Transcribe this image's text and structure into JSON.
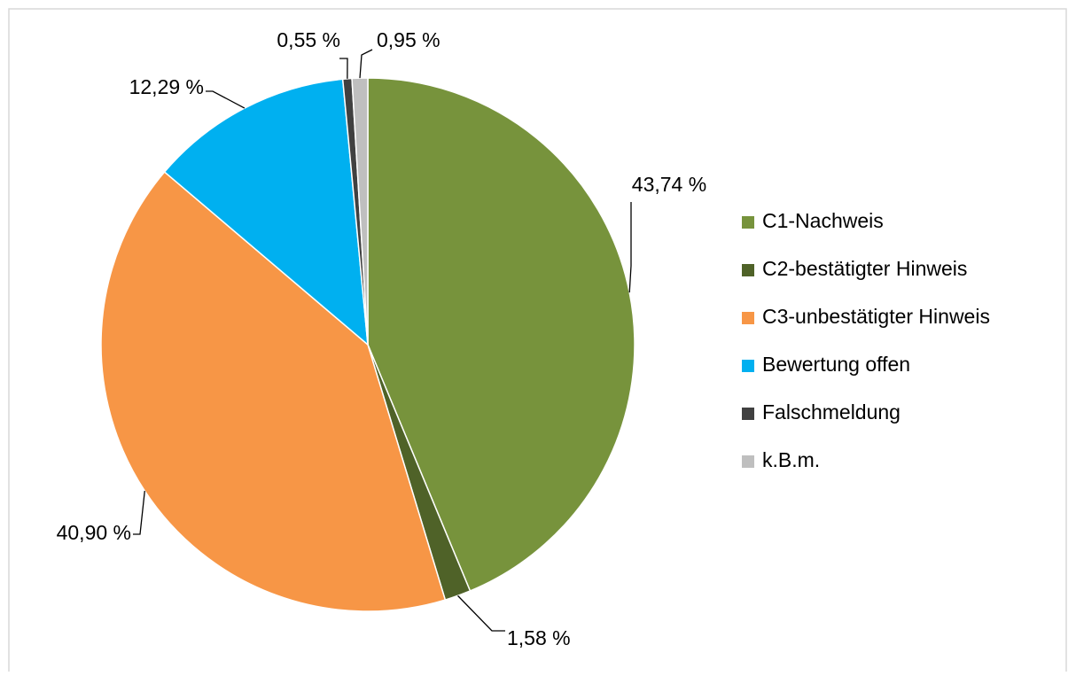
{
  "chart_data": {
    "type": "pie",
    "categories": [
      "C1-Nachweis",
      "C2-bestätigter Hinweis",
      "C3-unbestätigter Hinweis",
      "Bewertung offen",
      "Falschmeldung",
      "k.B.m."
    ],
    "values": [
      43.74,
      1.58,
      40.9,
      12.29,
      0.55,
      0.95
    ],
    "value_labels": [
      "43,74 %",
      "1,58 %",
      "40,90 %",
      "12,29 %",
      "0,55 %",
      "0,95 %"
    ],
    "colors": [
      "#77933c",
      "#4f6228",
      "#f79646",
      "#00b0f0",
      "#404040",
      "#bfbfbf"
    ],
    "legend": "right"
  }
}
